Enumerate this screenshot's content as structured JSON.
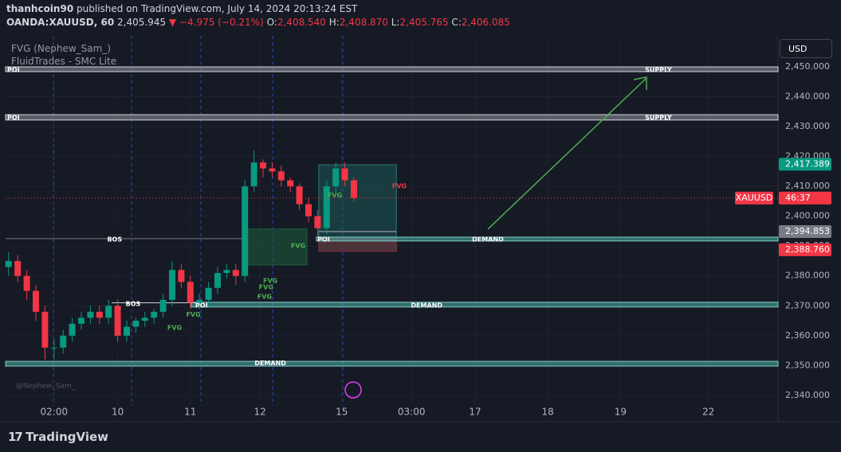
{
  "header": {
    "author": "thanhcoin90",
    "published": "published on TradingView.com, July 14, 2024 20:13:24 EST",
    "symbol": "OANDA:XAUUSD, 60",
    "last": "2,405.945",
    "arrow": "▼",
    "change": "−4.975 (−0.21%)",
    "ohlc": [
      {
        "key": "O:",
        "value": "2,408.540"
      },
      {
        "key": "H:",
        "value": "2,408.870"
      },
      {
        "key": "L:",
        "value": "2,405.765"
      },
      {
        "key": "C:",
        "value": "2,406.085"
      }
    ],
    "indicators": [
      "FVG (Nephew_Sam_)",
      "FluidTrades - SMC Lite"
    ],
    "currency": "USD",
    "watermark": "@Nephew_Sam_"
  },
  "footer": {
    "brand": "TradingView"
  },
  "chart_data": {
    "type": "candlestick",
    "x": [
      1,
      4,
      7,
      10,
      13,
      16,
      19,
      22,
      25,
      28,
      31,
      34,
      37,
      40,
      43,
      46,
      49,
      52,
      55,
      58,
      61,
      64,
      67,
      70,
      73,
      76,
      79,
      82,
      85,
      88,
      91,
      94,
      97,
      100,
      103,
      106,
      109,
      112,
      115
    ],
    "open": [
      2383,
      2385,
      2380,
      2375,
      2368,
      2356,
      2356,
      2360,
      2364,
      2366,
      2368,
      2366,
      2370,
      2360,
      2363,
      2365,
      2366,
      2368,
      2372,
      2382,
      2378,
      2371,
      2372,
      2376,
      2381,
      2382,
      2380,
      2410,
      2418,
      2416,
      2415,
      2412,
      2410,
      2404,
      2400,
      2396,
      2410,
      2416,
      2412
    ],
    "high": [
      2388,
      2387,
      2382,
      2377,
      2370,
      2359,
      2362,
      2366,
      2368,
      2370,
      2370,
      2372,
      2372,
      2365,
      2366,
      2368,
      2369,
      2374,
      2385,
      2384,
      2380,
      2374,
      2378,
      2383,
      2384,
      2384,
      2412,
      2422,
      2419,
      2418,
      2417,
      2413,
      2411,
      2406,
      2402,
      2412,
      2418,
      2418,
      2413
    ],
    "low": [
      2380,
      2378,
      2372,
      2365,
      2352,
      2352,
      2354,
      2358,
      2362,
      2364,
      2364,
      2364,
      2358,
      2358,
      2361,
      2363,
      2364,
      2366,
      2370,
      2376,
      2369,
      2369,
      2370,
      2374,
      2379,
      2377,
      2378,
      2408,
      2413,
      2413,
      2410,
      2408,
      2402,
      2398,
      2393,
      2394,
      2408,
      2410,
      2405
    ],
    "close": [
      2385,
      2380,
      2375,
      2368,
      2356,
      2356,
      2360,
      2364,
      2366,
      2368,
      2366,
      2370,
      2360,
      2363,
      2365,
      2366,
      2368,
      2372,
      2382,
      2378,
      2371,
      2372,
      2376,
      2381,
      2382,
      2380,
      2410,
      2418,
      2416,
      2415,
      2412,
      2410,
      2404,
      2400,
      2396,
      2410,
      2416,
      2412,
      2406.085
    ],
    "up_color": "#089981",
    "down_color": "#f23645",
    "xlim": [
      0,
      255
    ],
    "ylim": [
      2336.5,
      2460.4
    ],
    "xticks": [
      {
        "value": 16,
        "label": "02:00"
      },
      {
        "value": 37,
        "label": "10"
      },
      {
        "value": 61,
        "label": "11"
      },
      {
        "value": 84,
        "label": "12"
      },
      {
        "value": 111,
        "label": "15"
      },
      {
        "value": 134,
        "label": "03:00"
      },
      {
        "value": 155,
        "label": "17"
      },
      {
        "value": 179,
        "label": "18"
      },
      {
        "value": 203,
        "label": "19"
      },
      {
        "value": 232,
        "label": "22"
      }
    ],
    "yticks": [
      {
        "value": 2340,
        "label": "2,340.000"
      },
      {
        "value": 2350,
        "label": "2,350.000"
      },
      {
        "value": 2360,
        "label": "2,360.000"
      },
      {
        "value": 2370,
        "label": "2,370.000"
      },
      {
        "value": 2380,
        "label": "2,380.000"
      },
      {
        "value": 2390,
        "label": "2,390.000"
      },
      {
        "value": 2400,
        "label": "2,400.000"
      },
      {
        "value": 2410,
        "label": "2,410.000"
      },
      {
        "value": 2420,
        "label": "2,420.000"
      },
      {
        "value": 2430,
        "label": "2,430.000"
      },
      {
        "value": 2440,
        "label": "2,440.000"
      },
      {
        "value": 2450,
        "label": "2,450.000"
      }
    ],
    "grid": true,
    "zones": [
      {
        "x0": 0,
        "x1": 255,
        "y0": 2448.4,
        "y1": 2450,
        "fill": "#9598a1",
        "stroke": "#d1d4dc"
      },
      {
        "x0": 0,
        "x1": 255,
        "y0": 2432.2,
        "y1": 2434,
        "fill": "#9598a1",
        "stroke": "#d1d4dc"
      },
      {
        "x0": 79.7,
        "x1": 99.5,
        "y0": 2383.7,
        "y1": 2395.7,
        "fill": "#1b5e3a",
        "stroke": "#1b5e3a"
      },
      {
        "x0": 103.4,
        "x1": 129,
        "y0": 2388.2,
        "y1": 2417.2,
        "fill": "#1e5a5a",
        "stroke": "#2a7a78"
      },
      {
        "x0": 103.4,
        "x1": 129,
        "y0": 2388.2,
        "y1": 2392.5,
        "fill": "#7a2a35",
        "stroke": "#7a2a35"
      },
      {
        "x0": 102.6,
        "x1": 255,
        "y0": 2391.7,
        "y1": 2393,
        "fill": "#4db6ac",
        "stroke": "#80cbc4"
      },
      {
        "x0": 61.3,
        "x1": 255,
        "y0": 2369.6,
        "y1": 2371.2,
        "fill": "#4db6ac",
        "stroke": "#80cbc4"
      },
      {
        "x0": 0,
        "x1": 255,
        "y0": 2349.8,
        "y1": 2351.4,
        "fill": "#4db6ac",
        "stroke": "#80cbc4"
      }
    ],
    "lines": [
      {
        "x0": 0,
        "x1": 79.7,
        "y": 2392.5,
        "color": "#787b86"
      },
      {
        "x0": 35,
        "x1": 64,
        "y": 2371,
        "color": "#d1d4dc"
      },
      {
        "x0": 103.4,
        "x1": 129,
        "y": 2394.85,
        "color": "#b2b5be"
      }
    ],
    "annotations": [
      {
        "text": "POI",
        "x": 2.6,
        "y": 2449,
        "color": "#ffffff"
      },
      {
        "text": "SUPPLY",
        "x": 215.5,
        "y": 2449,
        "color": "#ffffff"
      },
      {
        "text": "POI",
        "x": 2.6,
        "y": 2433,
        "color": "#ffffff"
      },
      {
        "text": "SUPPLY",
        "x": 215.5,
        "y": 2433,
        "color": "#ffffff"
      },
      {
        "text": "BOS",
        "x": 36,
        "y": 2392.2,
        "color": "#ffffff"
      },
      {
        "text": "POI",
        "x": 105,
        "y": 2392.2,
        "color": "#ffffff"
      },
      {
        "text": "DEMAND",
        "x": 159.2,
        "y": 2392.2,
        "color": "#ffffff"
      },
      {
        "text": "FVG",
        "x": 96.6,
        "y": 2390,
        "color": "#4caf50"
      },
      {
        "text": "FVG",
        "x": 130,
        "y": 2410,
        "color": "#f23645"
      },
      {
        "text": "FVG",
        "x": 108.7,
        "y": 2407,
        "color": "#4caf50"
      },
      {
        "text": "BOS",
        "x": 42.1,
        "y": 2370.6,
        "color": "#ffffff"
      },
      {
        "text": "POI",
        "x": 64.7,
        "y": 2370.1,
        "color": "#ffffff"
      },
      {
        "text": "DEMAND",
        "x": 139,
        "y": 2370.1,
        "color": "#ffffff"
      },
      {
        "text": "FVG",
        "x": 87.4,
        "y": 2378.3,
        "color": "#4caf50"
      },
      {
        "text": "FVG",
        "x": 86,
        "y": 2376.2,
        "color": "#4caf50"
      },
      {
        "text": "FVG",
        "x": 85.5,
        "y": 2373,
        "color": "#4caf50"
      },
      {
        "text": "FVG",
        "x": 62,
        "y": 2367,
        "color": "#4caf50"
      },
      {
        "text": "FVG",
        "x": 55.8,
        "y": 2362.6,
        "color": "#4caf50"
      },
      {
        "text": "DEMAND",
        "x": 87.4,
        "y": 2350.7,
        "color": "#ffffff"
      }
    ],
    "current_price": {
      "value": 2406.085,
      "symbol": "XAUUSD",
      "label": "46:37",
      "color": "#f23645"
    },
    "price_tags": [
      {
        "value": 2417.389,
        "label": "2,417.389",
        "color": "#089981"
      },
      {
        "value": 2394.853,
        "label": "2,394.853",
        "color": "#787b86"
      },
      {
        "value": 2388.76,
        "label": "2,388.760",
        "color": "#f23645"
      }
    ]
  }
}
